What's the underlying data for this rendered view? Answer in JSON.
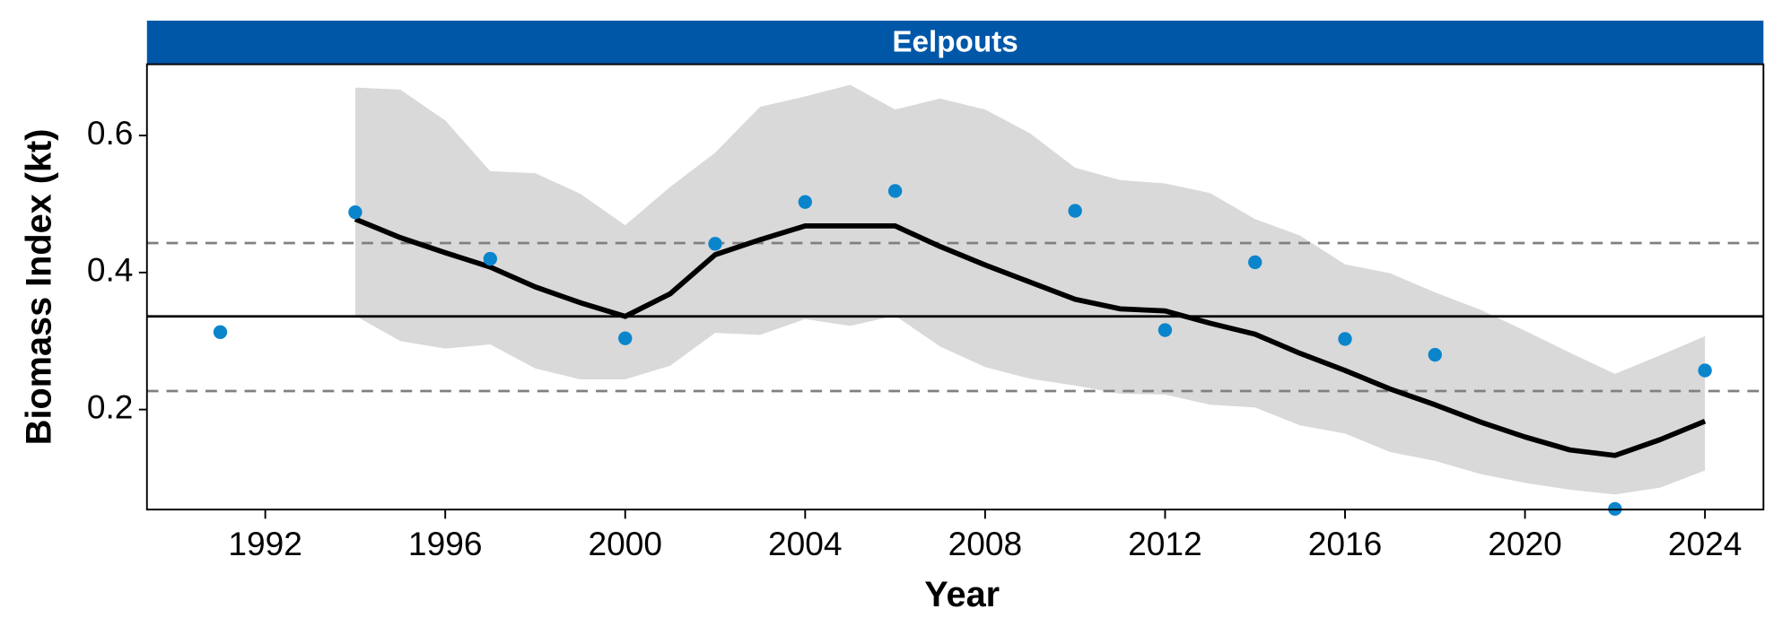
{
  "chart_data": {
    "type": "line",
    "title": "Eelpouts",
    "x_label": "Year",
    "y_label": "Biomass Index (kt)",
    "xlim": [
      1989.37,
      2025.3
    ],
    "ylim": [
      0.054,
      0.704
    ],
    "xticks": [
      1992,
      1996,
      2000,
      2004,
      2008,
      2012,
      2016,
      2020,
      2024
    ],
    "yticks": [
      0.2,
      0.4,
      0.6
    ],
    "reference_lines": {
      "color": "#000000",
      "mean": 0.336,
      "upper": 0.443,
      "lower": 0.227
    },
    "points": {
      "color": "#0a85cc",
      "x": [
        1991,
        1994,
        1997,
        2000,
        2002,
        2004,
        2006,
        2010,
        2012,
        2014,
        2016,
        2018,
        2022,
        2024
      ],
      "values": [
        0.313,
        0.488,
        0.42,
        0.304,
        0.442,
        0.503,
        0.519,
        0.49,
        0.316,
        0.415,
        0.303,
        0.28,
        0.055,
        0.257
      ]
    },
    "trend": {
      "color": "#000000",
      "band_color": "#d9d9d9",
      "x": [
        1994,
        1995,
        1996,
        1997,
        1998,
        1999,
        2000,
        2001,
        2002,
        2003,
        2004,
        2005,
        2006,
        2007,
        2008,
        2009,
        2010,
        2011,
        2012,
        2013,
        2014,
        2015,
        2016,
        2017,
        2018,
        2019,
        2020,
        2021,
        2022,
        2023,
        2024
      ],
      "values": [
        0.478,
        0.451,
        0.429,
        0.408,
        0.379,
        0.356,
        0.336,
        0.369,
        0.426,
        0.448,
        0.468,
        0.468,
        0.468,
        0.438,
        0.411,
        0.386,
        0.361,
        0.347,
        0.344,
        0.326,
        0.31,
        0.282,
        0.257,
        0.23,
        0.207,
        0.182,
        0.16,
        0.141,
        0.133,
        0.156,
        0.183
      ],
      "upper": [
        0.67,
        0.667,
        0.622,
        0.548,
        0.545,
        0.515,
        0.469,
        0.525,
        0.575,
        0.642,
        0.657,
        0.674,
        0.638,
        0.654,
        0.638,
        0.603,
        0.553,
        0.535,
        0.53,
        0.516,
        0.478,
        0.454,
        0.412,
        0.399,
        0.371,
        0.346,
        0.315,
        0.283,
        0.252,
        0.279,
        0.307
      ],
      "lower": [
        0.337,
        0.3,
        0.289,
        0.295,
        0.26,
        0.244,
        0.244,
        0.264,
        0.312,
        0.309,
        0.332,
        0.322,
        0.337,
        0.292,
        0.262,
        0.245,
        0.235,
        0.223,
        0.222,
        0.207,
        0.203,
        0.177,
        0.165,
        0.138,
        0.125,
        0.106,
        0.093,
        0.083,
        0.076,
        0.086,
        0.111
      ]
    }
  }
}
